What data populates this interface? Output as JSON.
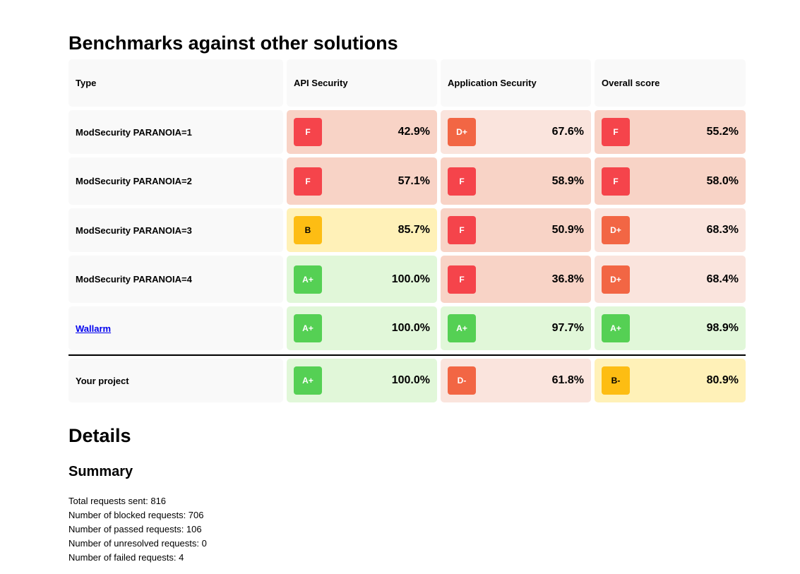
{
  "title": "Benchmarks against other solutions",
  "table": {
    "headers": [
      "Type",
      "API Security",
      "Application Security",
      "Overall score"
    ],
    "rows": [
      {
        "type": "ModSecurity PARANOIA=1",
        "api": {
          "grade": "F",
          "value": "42.9%"
        },
        "app": {
          "grade": "D+",
          "value": "67.6%"
        },
        "overall": {
          "grade": "F",
          "value": "55.2%"
        }
      },
      {
        "type": "ModSecurity PARANOIA=2",
        "api": {
          "grade": "F",
          "value": "57.1%"
        },
        "app": {
          "grade": "F",
          "value": "58.9%"
        },
        "overall": {
          "grade": "F",
          "value": "58.0%"
        }
      },
      {
        "type": "ModSecurity PARANOIA=3",
        "api": {
          "grade": "B",
          "value": "85.7%"
        },
        "app": {
          "grade": "F",
          "value": "50.9%"
        },
        "overall": {
          "grade": "D+",
          "value": "68.3%"
        }
      },
      {
        "type": "ModSecurity PARANOIA=4",
        "api": {
          "grade": "A+",
          "value": "100.0%"
        },
        "app": {
          "grade": "F",
          "value": "36.8%"
        },
        "overall": {
          "grade": "D+",
          "value": "68.4%"
        }
      },
      {
        "type": "Wallarm",
        "is_link": true,
        "api": {
          "grade": "A+",
          "value": "100.0%"
        },
        "app": {
          "grade": "A+",
          "value": "97.7%"
        },
        "overall": {
          "grade": "A+",
          "value": "98.9%"
        }
      }
    ],
    "project": {
      "type": "Your project",
      "api": {
        "grade": "A+",
        "value": "100.0%"
      },
      "app": {
        "grade": "D-",
        "value": "61.8%"
      },
      "overall": {
        "grade": "B-",
        "value": "80.9%"
      }
    }
  },
  "grade_colors": {
    "F": {
      "badge": "#f5444b",
      "cell": "#f8d3c6",
      "text": "#ffffff"
    },
    "D+": {
      "badge": "#f26644",
      "cell": "#fae4dd",
      "text": "#ffffff"
    },
    "D-": {
      "badge": "#f26644",
      "cell": "#fae4dd",
      "text": "#ffffff"
    },
    "B": {
      "badge": "#fdbd13",
      "cell": "#fff1b8",
      "text": "#000000"
    },
    "B-": {
      "badge": "#fdbd13",
      "cell": "#fff1b8",
      "text": "#000000"
    },
    "A+": {
      "badge": "#55d054",
      "cell": "#e1f7d9",
      "text": "#ffffff"
    }
  },
  "details_title": "Details",
  "summary_title": "Summary",
  "summary": [
    "Total requests sent: 816",
    "Number of blocked requests: 706",
    "Number of passed requests: 106",
    "Number of unresolved requests: 0",
    "Number of failed requests: 4"
  ]
}
